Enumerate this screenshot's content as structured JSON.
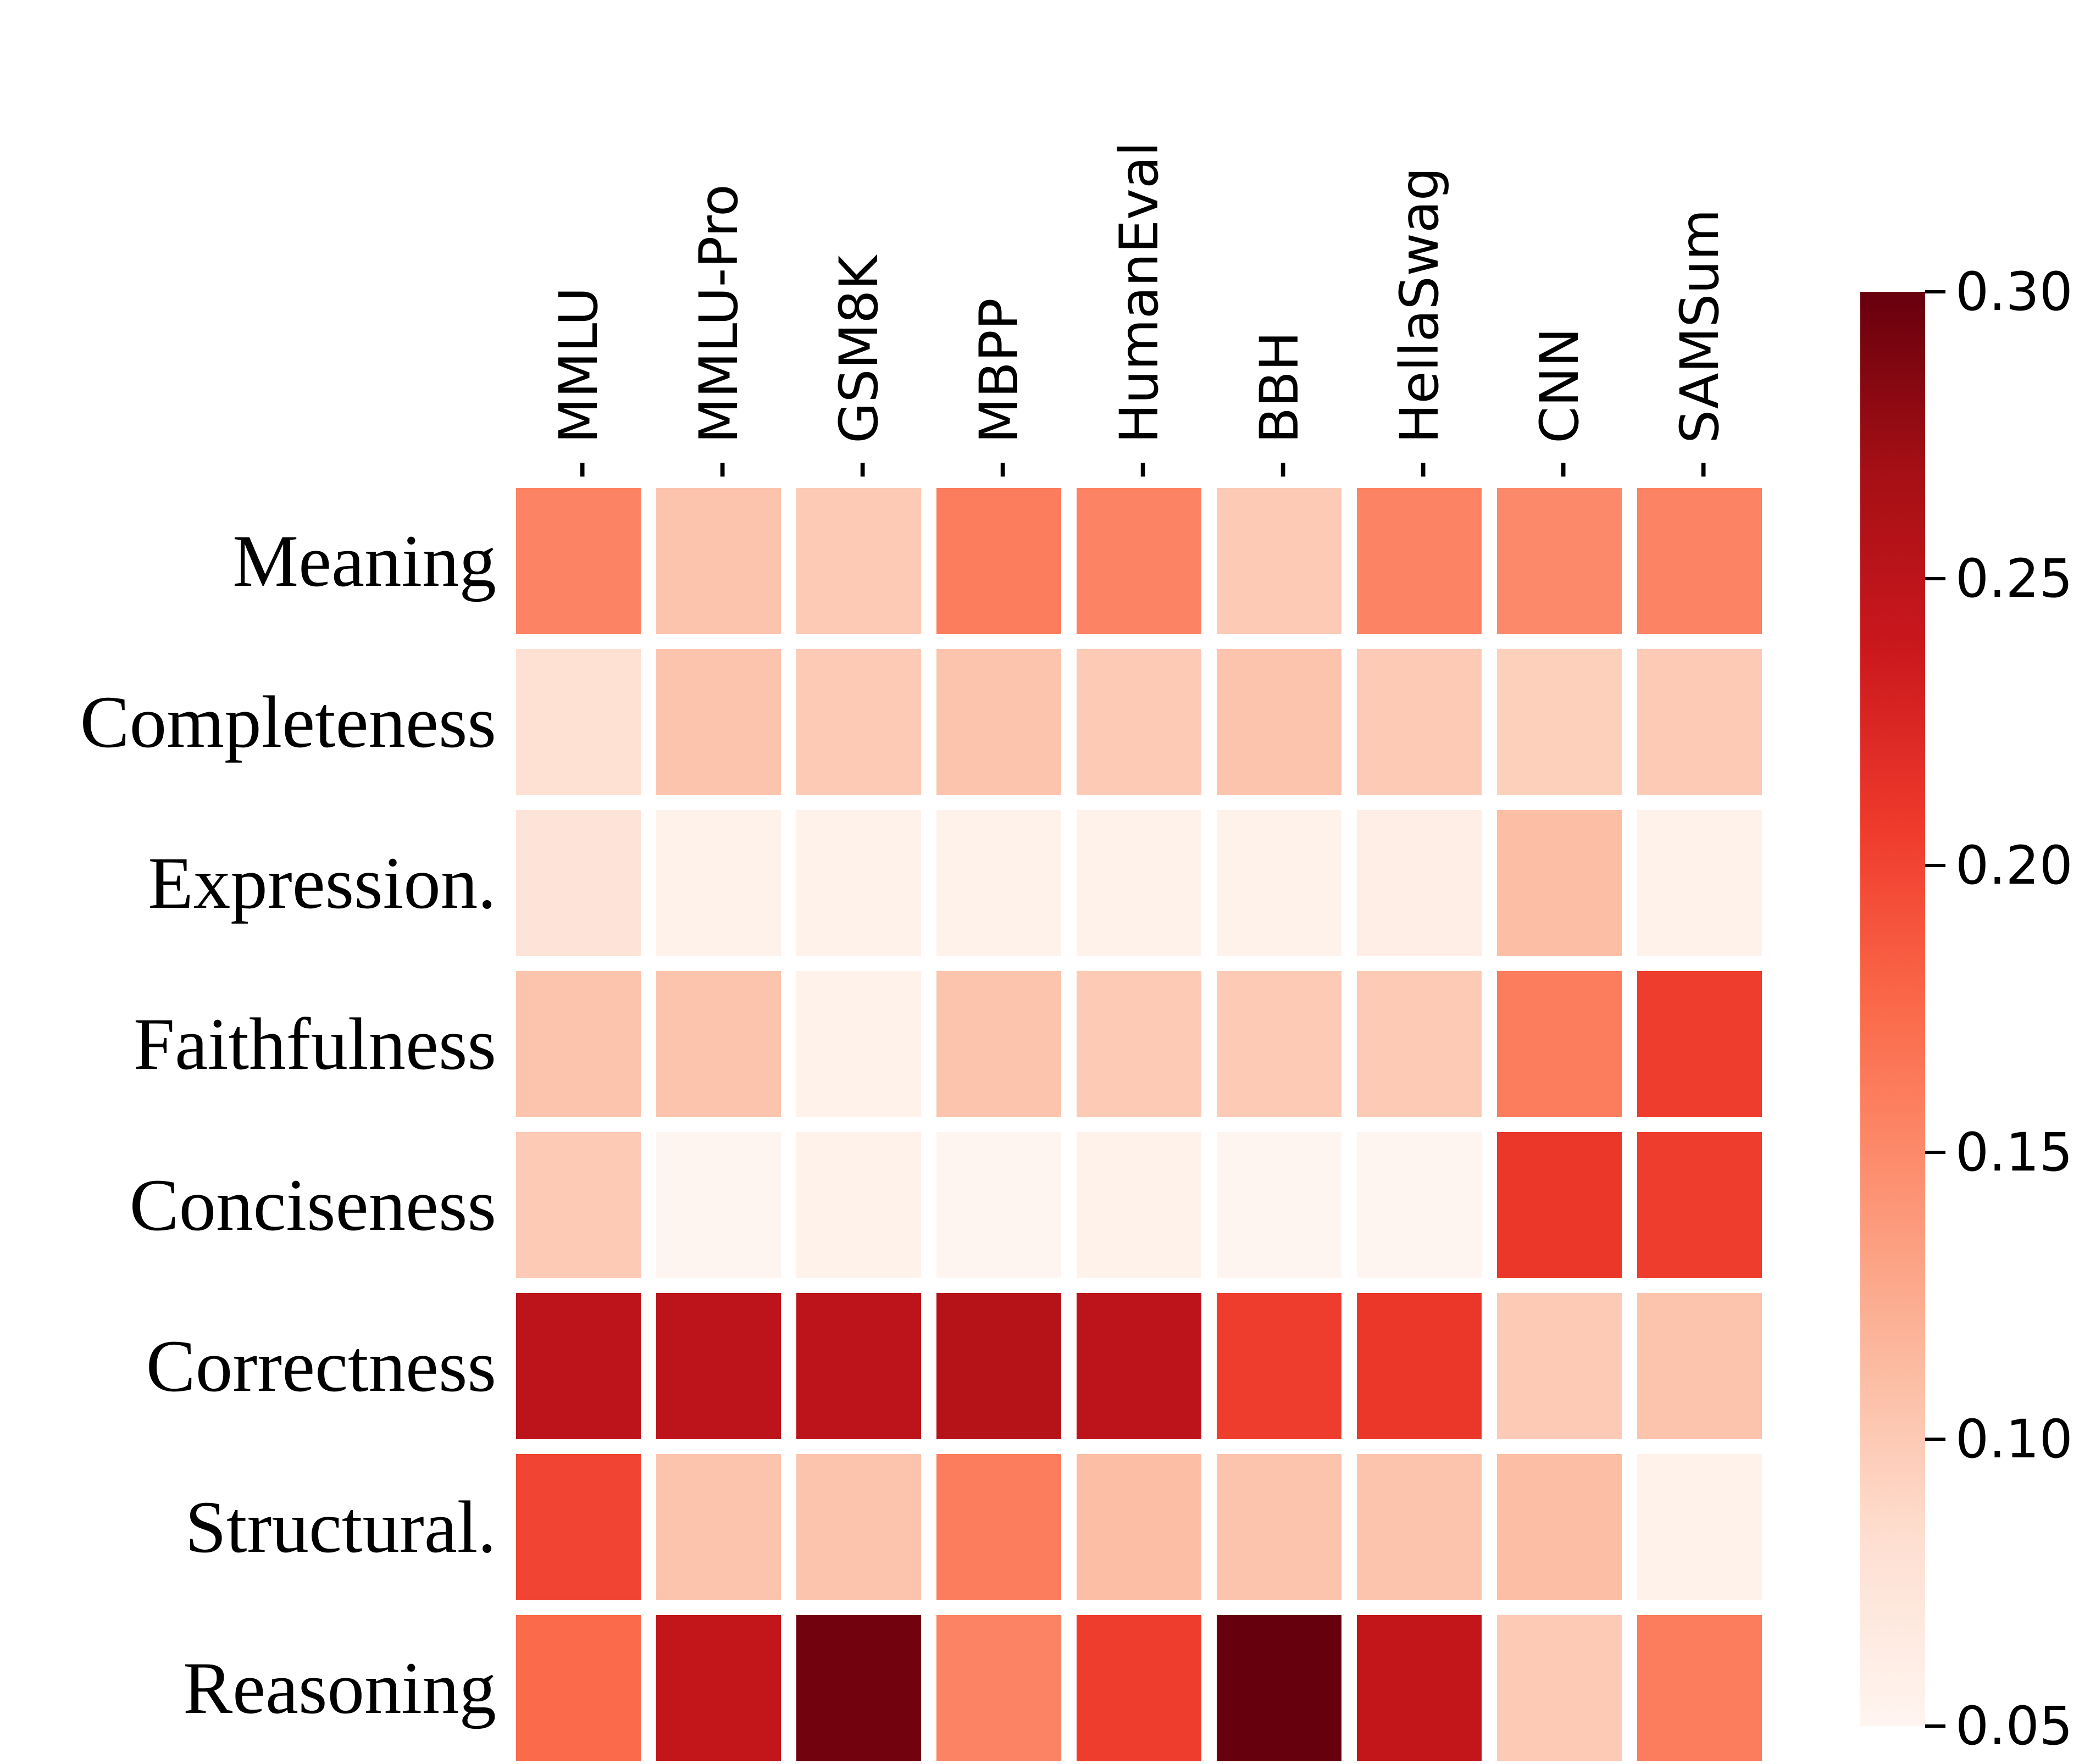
{
  "chart_data": {
    "type": "heatmap",
    "title": "",
    "columns": [
      "MMLU",
      "MMLU-Pro",
      "GSM8K",
      "MBPP",
      "HumanEval",
      "BBH",
      "HellaSwag",
      "CNN",
      "SAMSum"
    ],
    "rows": [
      "Meaning",
      "Completeness",
      "Expression.",
      "Faithfulness",
      "Conciseness",
      "Correctness",
      "Structural.",
      "Reasoning"
    ],
    "values": [
      [
        0.155,
        0.105,
        0.1,
        0.16,
        0.155,
        0.1,
        0.155,
        0.15,
        0.155
      ],
      [
        0.08,
        0.105,
        0.1,
        0.105,
        0.1,
        0.105,
        0.1,
        0.095,
        0.1
      ],
      [
        0.075,
        0.055,
        0.055,
        0.055,
        0.055,
        0.055,
        0.06,
        0.11,
        0.055
      ],
      [
        0.105,
        0.105,
        0.055,
        0.105,
        0.1,
        0.1,
        0.1,
        0.16,
        0.205
      ],
      [
        0.1,
        0.05,
        0.055,
        0.05,
        0.055,
        0.05,
        0.05,
        0.21,
        0.205
      ],
      [
        0.25,
        0.25,
        0.25,
        0.255,
        0.25,
        0.205,
        0.21,
        0.1,
        0.105
      ],
      [
        0.2,
        0.105,
        0.105,
        0.16,
        0.11,
        0.105,
        0.105,
        0.11,
        0.055
      ],
      [
        0.175,
        0.245,
        0.295,
        0.155,
        0.205,
        0.3,
        0.245,
        0.1,
        0.16
      ]
    ],
    "column_tick_glyph": "-",
    "colorbar": {
      "vmin": 0.05,
      "vmax": 0.3,
      "ticks": [
        {
          "value": 0.3,
          "label": "0.30"
        },
        {
          "value": 0.25,
          "label": "0.25"
        },
        {
          "value": 0.2,
          "label": "0.20"
        },
        {
          "value": 0.15,
          "label": "0.15"
        },
        {
          "value": 0.1,
          "label": "0.10"
        },
        {
          "value": 0.05,
          "label": "0.05"
        }
      ]
    },
    "colormap": {
      "name": "Reds",
      "anchors": [
        {
          "t": 0.0,
          "color": "#fff5f0"
        },
        {
          "t": 0.125,
          "color": "#fee0d2"
        },
        {
          "t": 0.25,
          "color": "#fcbba1"
        },
        {
          "t": 0.375,
          "color": "#fc9272"
        },
        {
          "t": 0.5,
          "color": "#fb6a4a"
        },
        {
          "t": 0.625,
          "color": "#ef3b2c"
        },
        {
          "t": 0.75,
          "color": "#cb181d"
        },
        {
          "t": 0.875,
          "color": "#a50f15"
        },
        {
          "t": 1.0,
          "color": "#67000d"
        }
      ]
    },
    "layout": {
      "legend_position": "right",
      "grid_lines": false,
      "background": "#ffffff",
      "tick_color": "#000000"
    }
  }
}
